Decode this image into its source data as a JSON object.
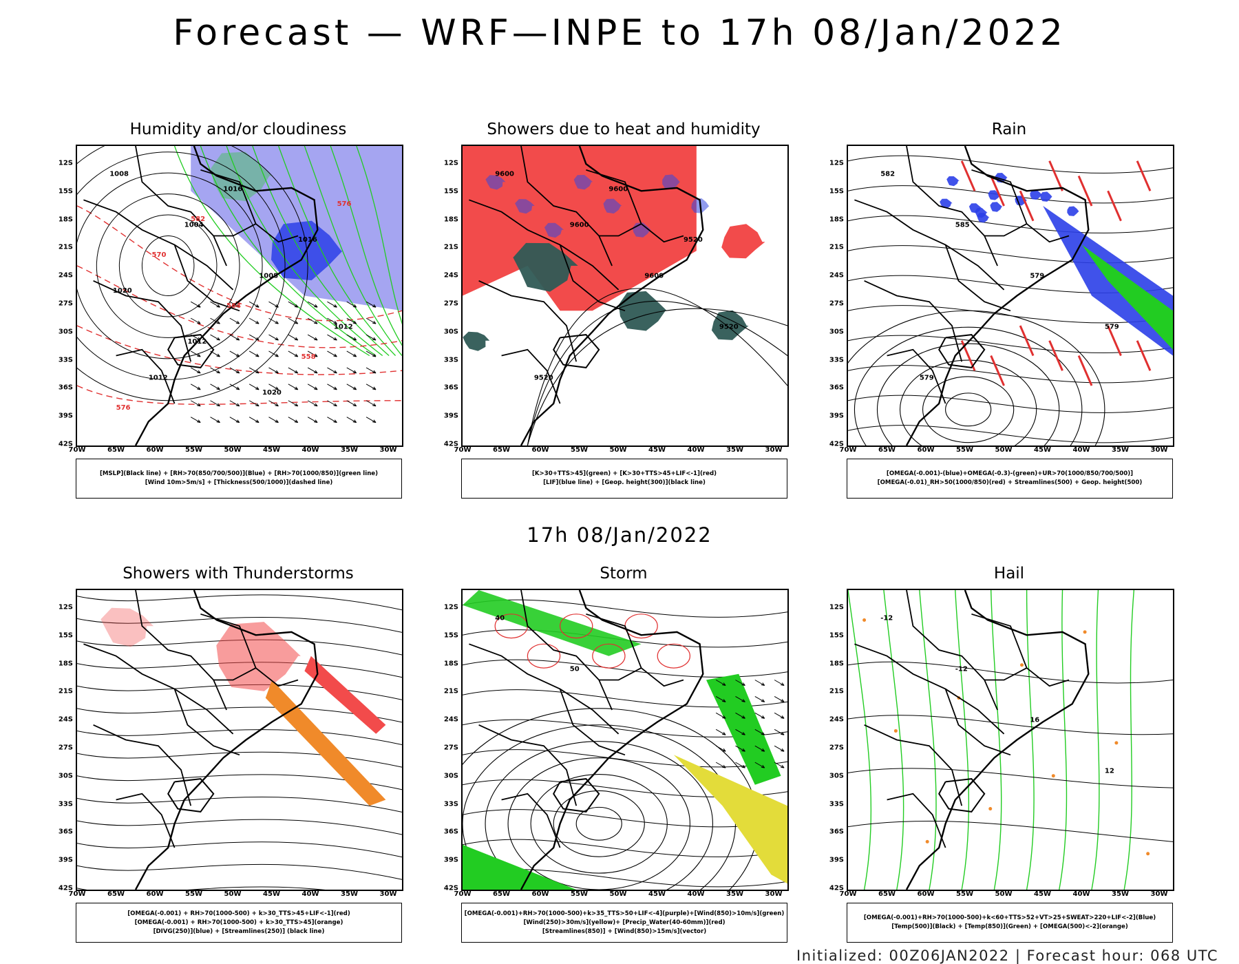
{
  "title": "Forecast — WRF—INPE to 17h 08/Jan/2022",
  "mid_date": "17h 08/Jan/2022",
  "footer": "Initialized: 00Z06JAN2022 | Forecast hour: 068 UTC",
  "axes": {
    "lat_labels": [
      "12S",
      "15S",
      "18S",
      "21S",
      "24S",
      "27S",
      "30S",
      "33S",
      "36S",
      "39S",
      "42S"
    ],
    "lon_labels": [
      "70W",
      "65W",
      "60W",
      "55W",
      "50W",
      "45W",
      "40W",
      "35W",
      "30W"
    ]
  },
  "panels": [
    {
      "title": "Humidity and/or cloudiness",
      "legend": [
        "[MSLP](Black line) + [RH>70(850/700/500)](Blue) + [RH>70(1000/850)](green line)",
        "[Wind 10m>5m/s] + [Thickness(500/1000)](dashed line)"
      ],
      "contour_labels": [
        "1008",
        "1004",
        "1008",
        "1012",
        "1012",
        "1016",
        "1016",
        "1020",
        "1012",
        "1020",
        "576",
        "570",
        "564",
        "558",
        "576",
        "582"
      ]
    },
    {
      "title": "Showers due to heat and humidity",
      "legend": [
        "[K>30+TTS>45](green) + [K>30+TTS>45+LIF<-1](red)",
        "[LIF](blue line) + [Geop. height(300)](black line)"
      ],
      "contour_labels": [
        "9600",
        "9600",
        "9600",
        "9520",
        "9520",
        "9600",
        "9520"
      ]
    },
    {
      "title": "Rain",
      "legend": [
        "[OMEGA(-0.001)-(blue)+OMEGA(-0.3)-(green)+UR>70(1000/850/700/500)]",
        "[OMEGA(-0.01)_RH>50(1000/850)(red) + Streamlines(500) + Geop. height(500)"
      ],
      "contour_labels": [
        "582",
        "585",
        "579",
        "579",
        "579"
      ]
    },
    {
      "title": "Showers with Thunderstorms",
      "legend": [
        "[OMEGA(-0.001) + RH>70(1000-500) + k>30_TTS>45+LIF<-1](red)",
        "[OMEGA(-0.001) + RH>70(1000-500) + k>30_TTS>45](orange)",
        "[DIVG(250)](blue) + [Streamlines(250)] (black line)"
      ],
      "contour_labels": []
    },
    {
      "title": "Storm",
      "legend": [
        "[OMEGA(-0.001)+RH>70(1000-500)+k>35_TTS>50+LIF<-4](purple)+[Wind(850)>10m/s](green)",
        "[Wind(250)>30m/s](yellow)+ [Precip_Water(40-60mm)](red)",
        "[Streamlines(850)] + [Wind(850)>15m/s](vector)"
      ],
      "contour_labels": [
        "40",
        "50"
      ]
    },
    {
      "title": "Hail",
      "legend": [
        "[OMEGA(-0.001)+RH>70(1000-500)+k<60+TTS>52+VT>25+SWEAT>220+LIF<-2](Blue)",
        "[Temp(500)](Black) + [Temp(850)](Green) + [OMEGA(500)<-2](orange)"
      ],
      "contour_labels": [
        "-12",
        "-12",
        "16",
        "12"
      ]
    }
  ],
  "colors": {
    "land_border": "#000000",
    "red_fill": "#f24b4b",
    "green_fill": "#22cc22",
    "blue_fill": "#2b3fe8",
    "lavender_fill": "#9b9bef",
    "teal_fill": "#2f5a55",
    "yellow_fill": "#e3dc3a",
    "orange": "#f08a2a",
    "green_line": "#22cc22",
    "red_line": "#e03030"
  }
}
